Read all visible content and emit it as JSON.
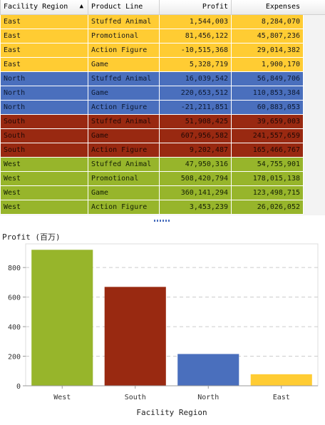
{
  "table": {
    "columns": [
      {
        "label": "Facility Region",
        "sort": "ascending"
      },
      {
        "label": "Product Line"
      },
      {
        "label": "Profit"
      },
      {
        "label": "Expenses"
      }
    ],
    "rows": [
      {
        "region": "East",
        "product": "Stuffed Animal",
        "profit": "1,544,003",
        "expenses": "8,284,070"
      },
      {
        "region": "East",
        "product": "Promotional",
        "profit": "81,456,122",
        "expenses": "45,807,236"
      },
      {
        "region": "East",
        "product": "Action Figure",
        "profit": "-10,515,368",
        "expenses": "29,014,382"
      },
      {
        "region": "East",
        "product": "Game",
        "profit": "5,328,719",
        "expenses": "1,900,170"
      },
      {
        "region": "North",
        "product": "Stuffed Animal",
        "profit": "16,039,542",
        "expenses": "56,849,706"
      },
      {
        "region": "North",
        "product": "Game",
        "profit": "220,653,512",
        "expenses": "110,853,384"
      },
      {
        "region": "North",
        "product": "Action Figure",
        "profit": "-21,211,851",
        "expenses": "60,883,053"
      },
      {
        "region": "South",
        "product": "Stuffed Animal",
        "profit": "51,908,425",
        "expenses": "39,659,003"
      },
      {
        "region": "South",
        "product": "Game",
        "profit": "607,956,582",
        "expenses": "241,557,659"
      },
      {
        "region": "South",
        "product": "Action Figure",
        "profit": "9,202,487",
        "expenses": "165,466,767"
      },
      {
        "region": "West",
        "product": "Stuffed Animal",
        "profit": "47,950,316",
        "expenses": "54,755,901"
      },
      {
        "region": "West",
        "product": "Promotional",
        "profit": "508,420,794",
        "expenses": "178,015,138"
      },
      {
        "region": "West",
        "product": "Game",
        "profit": "360,141,294",
        "expenses": "123,498,715"
      },
      {
        "region": "West",
        "product": "Action Figure",
        "profit": "3,453,239",
        "expenses": "26,026,052"
      }
    ]
  },
  "colors": {
    "East": "#ffcc33",
    "North": "#4a6fbd",
    "South": "#992911",
    "West": "#97b52b"
  },
  "icons": {
    "sort": "sort-ascending-icon"
  },
  "chart_data": {
    "type": "bar",
    "title": "Profit (百万)",
    "xlabel": "Facility Region",
    "ylabel": "",
    "categories": [
      "West",
      "South",
      "North",
      "East"
    ],
    "values": [
      920,
      669,
      215,
      78
    ],
    "bar_colors": [
      "#97b52b",
      "#992911",
      "#4a6fbd",
      "#ffcc33"
    ],
    "ylim": [
      0,
      960
    ],
    "yticks": [
      0,
      200,
      400,
      600,
      800
    ],
    "grid": true,
    "legend": "none"
  }
}
